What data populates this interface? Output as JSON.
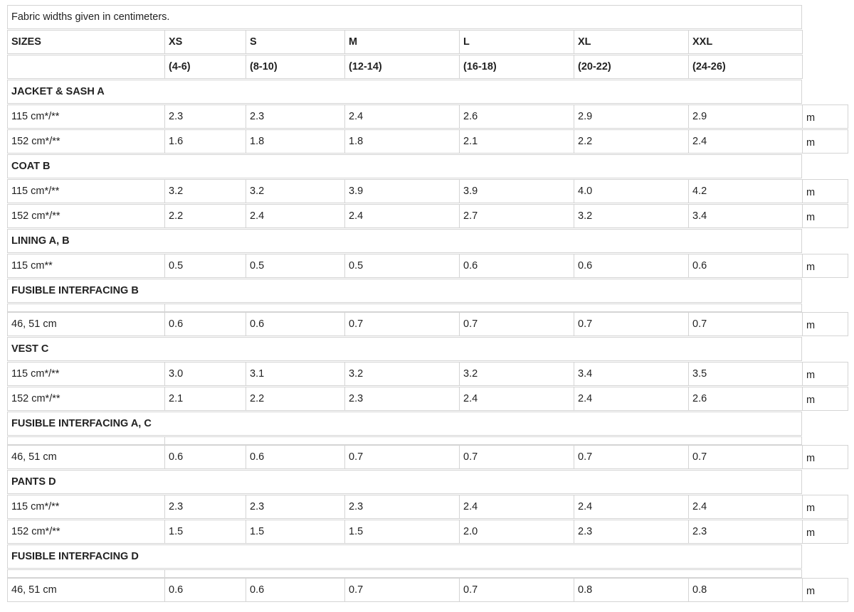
{
  "note": "Fabric widths given in centimeters.",
  "sizes_label": "SIZES",
  "sizes": [
    {
      "name": "XS",
      "range": "(4-6)"
    },
    {
      "name": "S",
      "range": "(8-10)"
    },
    {
      "name": "M",
      "range": "(12-14)"
    },
    {
      "name": "L",
      "range": "(16-18)"
    },
    {
      "name": "XL",
      "range": "(20-22)"
    },
    {
      "name": "XXL",
      "range": "(24-26)"
    }
  ],
  "unit": "m",
  "sections": [
    {
      "title": "JACKET & SASH A",
      "rows": [
        {
          "label": "115 cm*/**",
          "values": [
            "2.3",
            "2.3",
            "2.4",
            "2.6",
            "2.9",
            "2.9"
          ]
        },
        {
          "label": "152 cm*/**",
          "values": [
            "1.6",
            "1.8",
            "1.8",
            "2.1",
            "2.2",
            "2.4"
          ]
        }
      ]
    },
    {
      "title": "COAT B",
      "rows": [
        {
          "label": "115 cm*/**",
          "values": [
            "3.2",
            "3.2",
            "3.9",
            "3.9",
            "4.0",
            "4.2"
          ]
        },
        {
          "label": "152 cm*/**",
          "values": [
            "2.2",
            "2.4",
            "2.4",
            "2.7",
            "3.2",
            "3.4"
          ]
        }
      ]
    },
    {
      "title": "LINING A, B",
      "rows": [
        {
          "label": "115 cm**",
          "values": [
            "0.5",
            "0.5",
            "0.5",
            "0.6",
            "0.6",
            "0.6"
          ]
        }
      ]
    },
    {
      "title": "FUSIBLE INTERFACING B",
      "rows": [
        {
          "label": "46, 51 cm",
          "values": [
            "0.6",
            "0.6",
            "0.7",
            "0.7",
            "0.7",
            "0.7"
          ]
        }
      ]
    },
    {
      "title": "VEST C",
      "rows": [
        {
          "label": "115 cm*/**",
          "values": [
            "3.0",
            "3.1",
            "3.2",
            "3.2",
            "3.4",
            "3.5"
          ]
        },
        {
          "label": "152 cm*/**",
          "values": [
            "2.1",
            "2.2",
            "2.3",
            "2.4",
            "2.4",
            "2.6"
          ]
        }
      ]
    },
    {
      "title": "FUSIBLE INTERFACING A, C",
      "rows": [
        {
          "label": "46, 51 cm",
          "values": [
            "0.6",
            "0.6",
            "0.7",
            "0.7",
            "0.7",
            "0.7"
          ]
        }
      ]
    },
    {
      "title": "PANTS D",
      "rows": [
        {
          "label": "115 cm*/**",
          "values": [
            "2.3",
            "2.3",
            "2.3",
            "2.4",
            "2.4",
            "2.4"
          ]
        },
        {
          "label": "152 cm*/**",
          "values": [
            "1.5",
            "1.5",
            "1.5",
            "2.0",
            "2.3",
            "2.3"
          ]
        }
      ]
    },
    {
      "title": "FUSIBLE INTERFACING D",
      "rows": [
        {
          "label": "46, 51 cm",
          "values": [
            "0.6",
            "0.6",
            "0.7",
            "0.7",
            "0.8",
            "0.8"
          ]
        }
      ]
    }
  ]
}
